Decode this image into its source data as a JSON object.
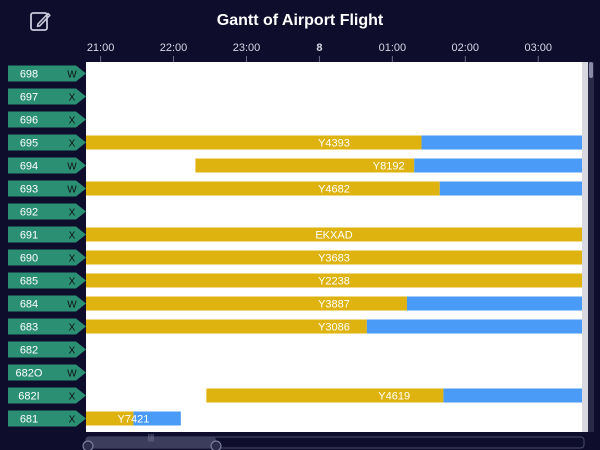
{
  "toolbar": {
    "edit_icon": "edit-icon"
  },
  "chart_data": {
    "type": "gantt",
    "title": "Gantt of Airport Flight",
    "x_ticks": [
      "21:00",
      "22:00",
      "23:00",
      "8",
      "01:00",
      "02:00",
      "03:00"
    ],
    "x_tick_hours": [
      0,
      1,
      2,
      3,
      4,
      5,
      6
    ],
    "x_range_hours": [
      -0.2,
      6.6
    ],
    "rows": [
      {
        "id": "698",
        "code": "W"
      },
      {
        "id": "697",
        "code": "X"
      },
      {
        "id": "696",
        "code": "X"
      },
      {
        "id": "695",
        "code": "X"
      },
      {
        "id": "694",
        "code": "W"
      },
      {
        "id": "693",
        "code": "W"
      },
      {
        "id": "692",
        "code": "X"
      },
      {
        "id": "691",
        "code": "X"
      },
      {
        "id": "690",
        "code": "X"
      },
      {
        "id": "685",
        "code": "X"
      },
      {
        "id": "684",
        "code": "W"
      },
      {
        "id": "683",
        "code": "X"
      },
      {
        "id": "682",
        "code": "X"
      },
      {
        "id": "682O",
        "code": "W"
      },
      {
        "id": "682I",
        "code": "X"
      },
      {
        "id": "681",
        "code": "X"
      }
    ],
    "flights": [
      {
        "row": "695",
        "label": "Y4393",
        "start": -0.2,
        "split": 4.4,
        "end": 6.6
      },
      {
        "row": "694",
        "label": "Y8192",
        "start": 1.3,
        "split": 4.3,
        "end": 6.6
      },
      {
        "row": "693",
        "label": "Y4682",
        "start": -0.2,
        "split": 4.65,
        "end": 6.6
      },
      {
        "row": "691",
        "label": "EKXAD",
        "start": -0.2,
        "split": 6.6,
        "end": 6.6
      },
      {
        "row": "690",
        "label": "Y3683",
        "start": -0.2,
        "split": 6.6,
        "end": 6.6
      },
      {
        "row": "685",
        "label": "Y2238",
        "start": -0.2,
        "split": 6.6,
        "end": 6.6
      },
      {
        "row": "684",
        "label": "Y3887",
        "start": -0.2,
        "split": 4.2,
        "end": 6.6
      },
      {
        "row": "683",
        "label": "Y3086",
        "start": -0.2,
        "split": 3.65,
        "end": 6.6
      },
      {
        "row": "682I",
        "label": "Y4619",
        "start": 1.45,
        "split": 4.7,
        "end": 6.6
      },
      {
        "row": "681",
        "label": "Y7421",
        "start": -0.2,
        "split": 0.45,
        "end": 1.1
      }
    ],
    "colors": {
      "background": "#0e0e2c",
      "plot_area": "#ffffff",
      "bar_primary": "#dfb30f",
      "bar_secondary": "#4a9af7",
      "row_label": "#2b8f73",
      "axis_text": "#d7d7e6",
      "title_text": "#ffffff"
    }
  }
}
